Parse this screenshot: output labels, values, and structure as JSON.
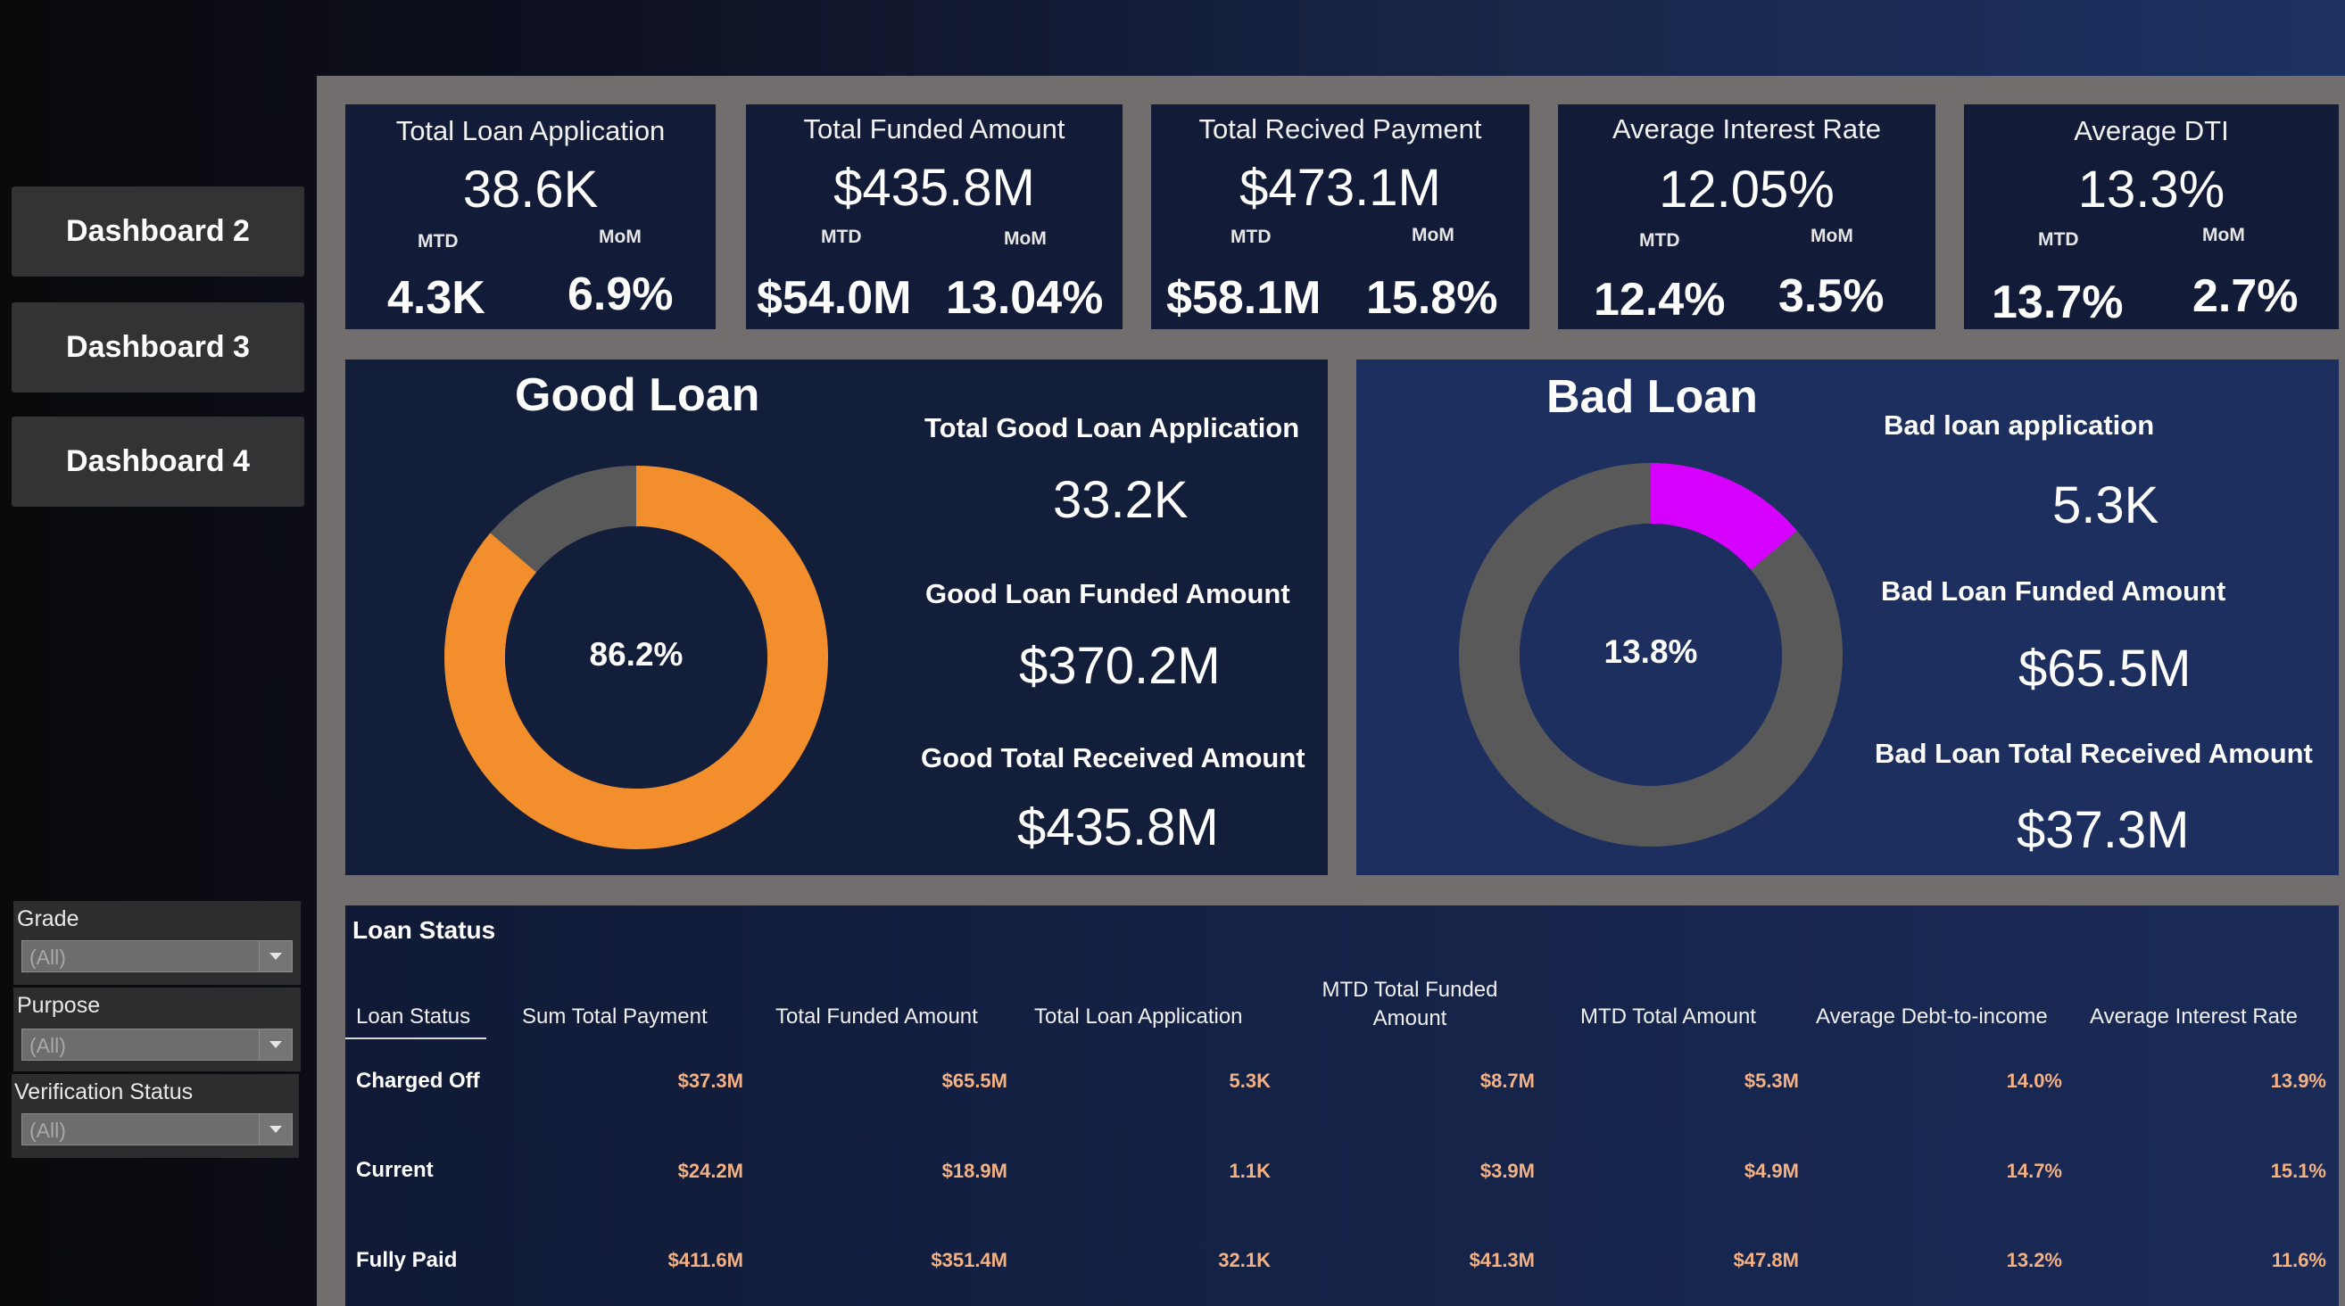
{
  "nav": {
    "buttons": [
      {
        "label": "Dashboard 2"
      },
      {
        "label": "Dashboard 3"
      },
      {
        "label": "Dashboard 4"
      }
    ]
  },
  "filters": [
    {
      "label": "Grade",
      "value": "(All)"
    },
    {
      "label": "Purpose",
      "value": "(All)"
    },
    {
      "label": "Verification Status",
      "value": "(All)"
    }
  ],
  "kpis": [
    {
      "title": "Total Loan Application",
      "value": "38.6K",
      "mtd_label": "MTD",
      "mom_label": "MoM",
      "mtd": "4.3K",
      "mom": "6.9%"
    },
    {
      "title": "Total Funded Amount",
      "value": "$435.8M",
      "mtd_label": "MTD",
      "mom_label": "MoM",
      "mtd": "$54.0M",
      "mom": "13.04%"
    },
    {
      "title": "Total Recived Payment",
      "value": "$473.1M",
      "mtd_label": "MTD",
      "mom_label": "MoM",
      "mtd": "$58.1M",
      "mom": "15.8%"
    },
    {
      "title": "Average Interest Rate",
      "value": "12.05%",
      "mtd_label": "MTD",
      "mom_label": "MoM",
      "mtd": "12.4%",
      "mom": "3.5%"
    },
    {
      "title": "Average DTI",
      "value": "13.3%",
      "mtd_label": "MTD",
      "mom_label": "MoM",
      "mtd": "13.7%",
      "mom": "2.7%"
    }
  ],
  "good_loan": {
    "title": "Good Loan",
    "percent_label": "86.2%",
    "percent": 86.2,
    "main_color": "#f28e2b",
    "rest_color": "#595959",
    "center_color": "#131e3a",
    "application_label": "Total Good Loan Application",
    "application_value": "33.2K",
    "funded_label": "Good Loan Funded Amount",
    "funded_value": "$370.2M",
    "received_label": "Good Total Received Amount",
    "received_value": "$435.8M"
  },
  "bad_loan": {
    "title": "Bad Loan",
    "percent_label": "13.8%",
    "percent": 13.8,
    "main_color": "#d600ff",
    "rest_color": "#595959",
    "center_color": "#1c2f5e",
    "application_label": "Bad loan application",
    "application_value": "5.3K",
    "funded_label": "Bad Loan Funded Amount",
    "funded_value": "$65.5M",
    "received_label": "Bad Loan Total Received Amount",
    "received_value": "$37.3M"
  },
  "loan_status": {
    "title": "Loan Status",
    "columns": [
      "Loan Status",
      "Sum Total Payment",
      "Total Funded Amount",
      "Total Loan Application",
      "MTD Total Funded Amount",
      "MTD Total Amount",
      "Average Debt-to-income",
      "Average Interest Rate"
    ],
    "rows": [
      {
        "status": "Charged Off",
        "values": [
          "$37.3M",
          "$65.5M",
          "5.3K",
          "$8.7M",
          "$5.3M",
          "14.0%",
          "13.9%"
        ]
      },
      {
        "status": "Current",
        "values": [
          "$24.2M",
          "$18.9M",
          "1.1K",
          "$3.9M",
          "$4.9M",
          "14.7%",
          "15.1%"
        ]
      },
      {
        "status": "Fully Paid",
        "values": [
          "$411.6M",
          "$351.4M",
          "32.1K",
          "$41.3M",
          "$47.8M",
          "13.2%",
          "11.6%"
        ]
      }
    ],
    "value_color": "#f4b183"
  }
}
